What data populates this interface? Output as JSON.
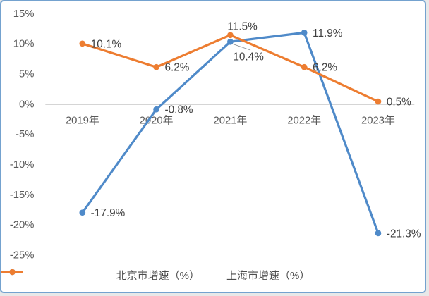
{
  "chart_data": {
    "type": "line",
    "categories": [
      "2019年",
      "2020年",
      "2021年",
      "2022年",
      "2023年"
    ],
    "series": [
      {
        "name": "北京市增速（%）",
        "color": "#4f8ac9",
        "values": [
          -17.9,
          -0.8,
          10.4,
          11.9,
          -21.3
        ],
        "labels": [
          "-17.9%",
          "-0.8%",
          "10.4%",
          "11.9%",
          "-21.3%"
        ],
        "label_placement": [
          "right",
          "right",
          "below-leader",
          "right",
          "right"
        ]
      },
      {
        "name": "上海市增速（%）",
        "color": "#ed7d31",
        "values": [
          10.1,
          6.2,
          11.5,
          6.2,
          0.5
        ],
        "labels": [
          "10.1%",
          "6.2%",
          "11.5%",
          "6.2%",
          "0.5%"
        ],
        "label_placement": [
          "right",
          "right",
          "above",
          "right",
          "right"
        ]
      }
    ],
    "y_ticks": [
      "15%",
      "10%",
      "5%",
      "0%",
      "-5%",
      "-10%",
      "-15%",
      "-20%",
      "-25%"
    ],
    "y_tick_values": [
      15,
      10,
      5,
      0,
      -5,
      -10,
      -15,
      -20,
      -25
    ],
    "ylim": [
      -25,
      15
    ],
    "grid": "zero-line-only",
    "legend_position": "bottom",
    "colors": {
      "axis_text": "#595959",
      "data_label_text": "#404040",
      "gridline": "#cfcfcf",
      "frame_border": "#74a2cf",
      "leader_line": "#8c9196"
    }
  }
}
